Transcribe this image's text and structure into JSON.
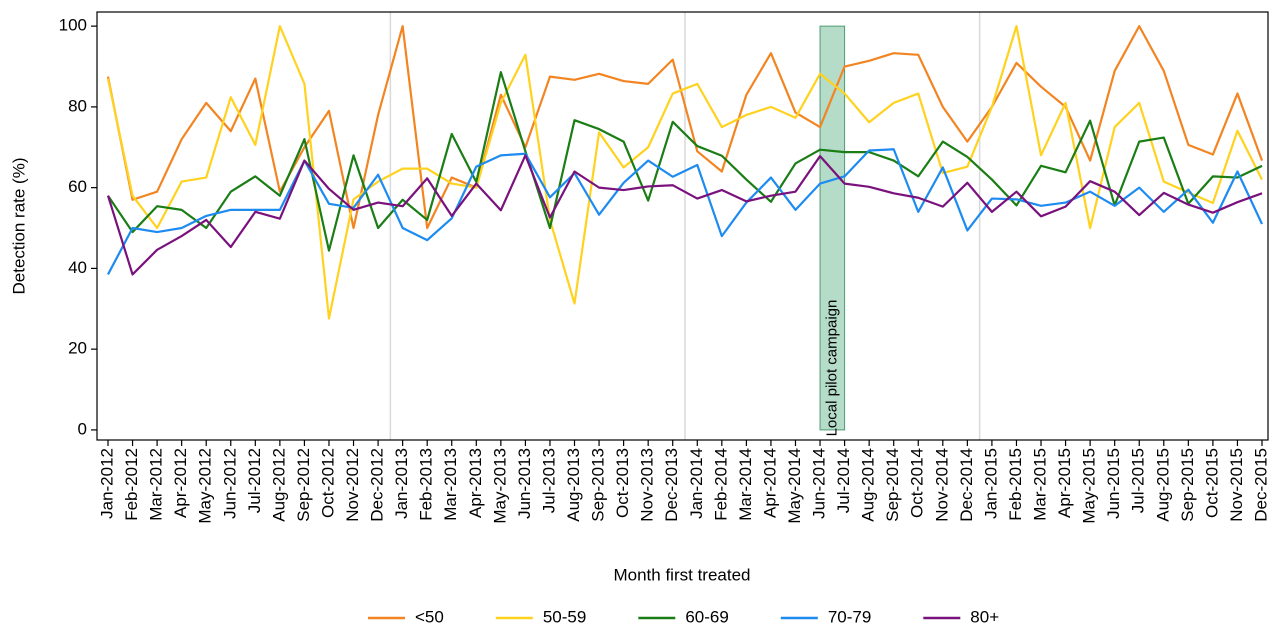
{
  "chart_data": {
    "type": "line",
    "x_title": "Month first treated",
    "y_title": "Detection rate (%)",
    "categories": [
      "Jan-2012",
      "Feb-2012",
      "Mar-2012",
      "Apr-2012",
      "May-2012",
      "Jun-2012",
      "Jul-2012",
      "Aug-2012",
      "Sep-2012",
      "Oct-2012",
      "Nov-2012",
      "Dec-2012",
      "Jan-2013",
      "Feb-2013",
      "Mar-2013",
      "Apr-2013",
      "May-2013",
      "Jun-2013",
      "Jul-2013",
      "Aug-2013",
      "Sep-2013",
      "Oct-2013",
      "Nov-2013",
      "Dec-2013",
      "Jan-2014",
      "Feb-2014",
      "Mar-2014",
      "Apr-2014",
      "May-2014",
      "Jun-2014",
      "Jul-2014",
      "Aug-2014",
      "Sep-2014",
      "Oct-2014",
      "Nov-2014",
      "Dec-2014",
      "Jan-2015",
      "Feb-2015",
      "Mar-2015",
      "Apr-2015",
      "May-2015",
      "Jun-2015",
      "Jul-2015",
      "Aug-2015",
      "Sep-2015",
      "Oct-2015",
      "Nov-2015",
      "Dec-2015"
    ],
    "series": [
      {
        "name": "<50",
        "color": "#f28522",
        "values": [
          87.5,
          57,
          59,
          72,
          81,
          74,
          87,
          59,
          70,
          79,
          50,
          78,
          100,
          50,
          62.5,
          60,
          83,
          70,
          87.5,
          86.7,
          88.2,
          86.4,
          85.7,
          91.7,
          69,
          64,
          83,
          93.3,
          78.6,
          75,
          90,
          91.4,
          93.3,
          92.9,
          80,
          71.4,
          80,
          90.9,
          85,
          80,
          66.7,
          88.9,
          100,
          88.9,
          70.6,
          68.2,
          83.3,
          66.7
        ]
      },
      {
        "name": "50-59",
        "color": "#ffd21f",
        "values": [
          87,
          58,
          50,
          61.5,
          62.5,
          82.4,
          70.6,
          100,
          85.7,
          27.6,
          57.1,
          61.5,
          64.7,
          64.7,
          61,
          60,
          81,
          92.9,
          52,
          31.3,
          73.7,
          65,
          70,
          83.3,
          85.7,
          75,
          78,
          80,
          77.3,
          88.2,
          83.3,
          76.2,
          81,
          83.3,
          63.6,
          65.2,
          80,
          100,
          68,
          81,
          50,
          75,
          81,
          61.5,
          58.8,
          56.2,
          74.1,
          62
        ]
      },
      {
        "name": "60-69",
        "color": "#1a7d15",
        "values": [
          58,
          49,
          55.4,
          54.5,
          50,
          59,
          62.8,
          58,
          72,
          44.4,
          68,
          50,
          57,
          52,
          73.3,
          61.4,
          88.6,
          69,
          50,
          76.7,
          74.5,
          71.4,
          56.8,
          76.3,
          70.3,
          67.9,
          62,
          56.5,
          66,
          69.4,
          68.8,
          68.8,
          66.7,
          62.8,
          71.4,
          67.6,
          62,
          55.6,
          65.4,
          63.8,
          76.6,
          55.6,
          71.4,
          72.4,
          56,
          62.8,
          62.5,
          65.4
        ]
      },
      {
        "name": "70-79",
        "color": "#1e8bf0",
        "values": [
          38.5,
          50,
          49,
          50,
          53,
          54.5,
          54.5,
          54.5,
          66.7,
          56,
          55,
          63.2,
          50,
          47,
          52.4,
          65.2,
          68,
          68.4,
          57.6,
          63.6,
          53.3,
          61.2,
          66.7,
          62.7,
          65.6,
          48,
          56.3,
          62.5,
          54.5,
          61,
          62.8,
          69.2,
          69.5,
          54,
          65,
          49.4,
          57.3,
          57.1,
          55.5,
          56.3,
          59,
          55.5,
          60,
          54,
          59.5,
          51.3,
          64,
          51
        ]
      },
      {
        "name": "80+",
        "color": "#7a127d",
        "values": [
          58,
          38.5,
          44.6,
          48,
          52,
          45.3,
          54,
          52.3,
          66.7,
          59.7,
          54.5,
          56.3,
          55.4,
          62.3,
          53,
          61,
          54.4,
          68,
          52.6,
          64,
          60,
          59.4,
          60.3,
          60.6,
          57.3,
          59.4,
          56.6,
          58,
          59,
          67.8,
          61,
          60.2,
          58.6,
          57.5,
          55.3,
          61.2,
          54,
          59,
          52.9,
          55.3,
          61.6,
          59,
          53.2,
          58.7,
          55.8,
          53.8,
          56.4,
          58.6
        ]
      }
    ],
    "ylim": [
      -2.5,
      103.5
    ],
    "yticks": [
      0,
      20,
      40,
      60,
      80,
      100
    ],
    "annotation": {
      "text": "Local pilot campaign",
      "x": [
        "Jun-2014",
        "Jul-2014"
      ],
      "y": [
        0,
        100
      ],
      "color": "#b5dcc8"
    },
    "legend": "bottom"
  }
}
